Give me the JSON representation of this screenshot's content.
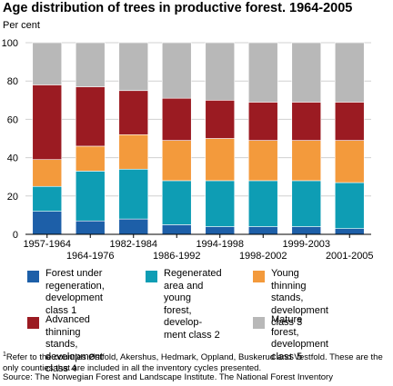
{
  "title": "Age distribution of trees in productive forest. 1964-2005",
  "unit_label": "Per cent",
  "chart_data": {
    "type": "bar",
    "stacked": true,
    "title": "Age distribution of trees in productive forest. 1964-2005",
    "ylabel": "Per cent",
    "ylim": [
      0,
      100
    ],
    "yticks": [
      0,
      20,
      40,
      60,
      80,
      100
    ],
    "categories": [
      "1957-1964",
      "1964-1976",
      "1982-1984",
      "1986-1992",
      "1994-1998",
      "1998-2002",
      "1999-2003",
      "2001-2005"
    ],
    "series": [
      {
        "name": "Forest under regeneration, development class 1",
        "color": "#1d5fa8",
        "values": [
          12,
          7,
          8,
          5,
          4,
          4,
          4,
          3
        ]
      },
      {
        "name": "Regenerated area and young forest, development class 2",
        "color": "#0e9db4",
        "values": [
          13,
          26,
          26,
          23,
          24,
          24,
          24,
          24
        ]
      },
      {
        "name": "Young thinning stands, development class 3",
        "color": "#f39a3c",
        "values": [
          14,
          13,
          18,
          21,
          22,
          21,
          21,
          22
        ]
      },
      {
        "name": "Advanced thinning stands, development class 4",
        "color": "#9b1b22",
        "values": [
          39,
          31,
          23,
          22,
          20,
          20,
          20,
          20
        ]
      },
      {
        "name": "Mature forest, development class 5",
        "color": "#b8b8b8",
        "values": [
          22,
          23,
          25,
          29,
          30,
          31,
          31,
          31
        ]
      }
    ],
    "grid": true,
    "legend_position": "bottom"
  },
  "legend": [
    {
      "label": "Forest under\nregeneration,\ndevelopment class 1",
      "color": "#1d5fa8"
    },
    {
      "label": "Regenerated\narea and young\nforest, develop-\nment class 2",
      "color": "#0e9db4"
    },
    {
      "label": "Young thinning stands,\ndevelopment class 3",
      "color": "#f39a3c"
    },
    {
      "label": "Advanced thinning\nstands, development class 4",
      "color": "#9b1b22"
    },
    {
      "label": "Mature forest,\ndevelopment class 5",
      "color": "#b8b8b8"
    }
  ],
  "footnote_marker": "1",
  "footnote": "Refer to the counties Østfold, Akershus, Hedmark, Oppland, Buskerud and Vestfold. These are the only counties that are included in all the inventory cycles presented.",
  "source": "Source: The Norwegian Forest and Landscape Institute. The National Forest Inventory"
}
